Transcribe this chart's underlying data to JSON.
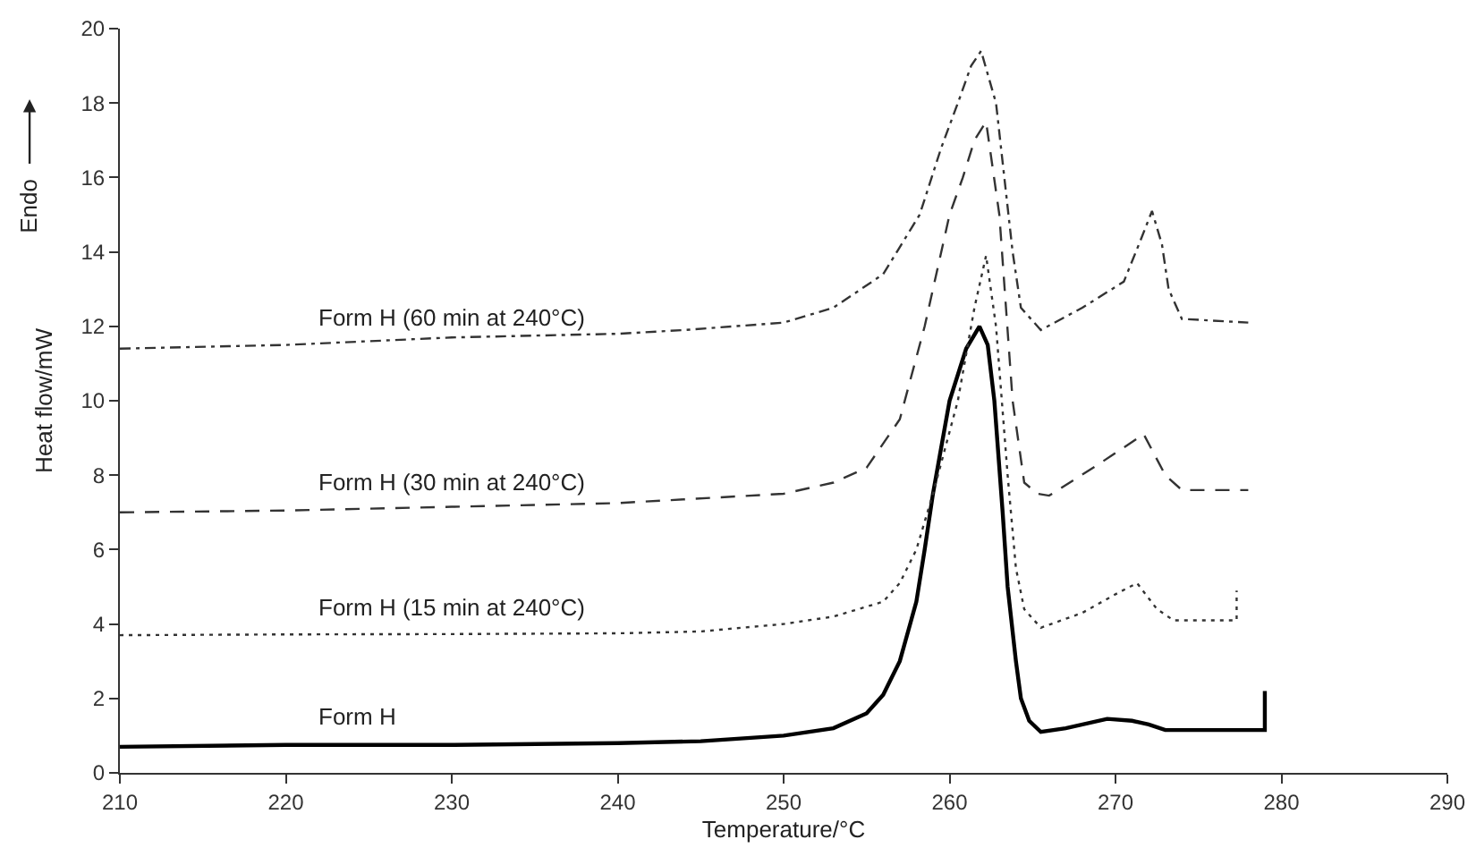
{
  "chart_data": {
    "type": "line",
    "xlabel": "Temperature/°C",
    "ylabel": "Heat flow/mW",
    "annotations": [
      "Endo"
    ],
    "xlim": [
      210,
      290
    ],
    "xticks": [
      210,
      220,
      230,
      240,
      250,
      260,
      270,
      280,
      290
    ],
    "ylim": [
      0,
      20
    ],
    "yticks": [
      0,
      2,
      4,
      6,
      8,
      10,
      12,
      14,
      16,
      18,
      20
    ],
    "grid": false,
    "legend": false,
    "marker": "none",
    "series": [
      {
        "name": "Form H",
        "color": "#000000",
        "line_style": "solid",
        "x": [
          210,
          220,
          230,
          240,
          245,
          250,
          253,
          255,
          256,
          257,
          258,
          258.5,
          259,
          260,
          261,
          261.8,
          262.3,
          262.7,
          263.2,
          263.5,
          264,
          264.3,
          264.8,
          265.5,
          267,
          269.5,
          271,
          272,
          273,
          275,
          279,
          279
        ],
        "values": [
          0.7,
          0.75,
          0.75,
          0.8,
          0.85,
          1.0,
          1.2,
          1.6,
          2.1,
          3.0,
          4.6,
          6.0,
          7.5,
          10.0,
          11.4,
          12.0,
          11.5,
          10.0,
          7.0,
          5.0,
          3.0,
          2.0,
          1.4,
          1.1,
          1.2,
          1.45,
          1.4,
          1.3,
          1.15,
          1.15,
          1.15,
          2.2
        ]
      },
      {
        "name": "Form H (15 min at 240°C)",
        "color": "#333333",
        "line_style": "dotted",
        "x": [
          210,
          220,
          230,
          240,
          245,
          250,
          253,
          256,
          257,
          258,
          259,
          260.5,
          261.5,
          262.2,
          262.8,
          263.5,
          264,
          264.5,
          265.5,
          268,
          270,
          271.3,
          272.5,
          273.5,
          277.3,
          277.3
        ],
        "values": [
          3.7,
          3.72,
          3.73,
          3.75,
          3.8,
          4.0,
          4.2,
          4.6,
          5.1,
          6.0,
          7.5,
          10.0,
          12.5,
          13.9,
          12.0,
          8.0,
          5.5,
          4.4,
          3.9,
          4.3,
          4.8,
          5.1,
          4.4,
          4.1,
          4.1,
          4.9
        ]
      },
      {
        "name": "Form H (30 min at 240°C)",
        "color": "#333333",
        "line_style": "dashed",
        "x": [
          210,
          220,
          230,
          240,
          244,
          250,
          253,
          255,
          257,
          258.5,
          260,
          260.8,
          261.5,
          262.2,
          263,
          263.8,
          264.5,
          265.3,
          266,
          269,
          271.7,
          273,
          274,
          278
        ],
        "values": [
          7.0,
          7.05,
          7.15,
          7.25,
          7.35,
          7.5,
          7.8,
          8.2,
          9.5,
          12.0,
          15.0,
          16.0,
          17.0,
          17.5,
          15.0,
          10.0,
          7.8,
          7.5,
          7.45,
          8.3,
          9.1,
          8.0,
          7.6,
          7.6
        ]
      },
      {
        "name": "Form H (60 min at 240°C)",
        "color": "#333333",
        "line_style": "dashdot",
        "x": [
          210,
          220,
          230,
          240,
          244,
          250,
          253,
          256,
          258.2,
          259.5,
          260.5,
          261.3,
          261.9,
          262.8,
          263.3,
          263.8,
          264.3,
          265.5,
          268,
          270.5,
          271.5,
          272.2,
          272.8,
          273.2,
          274,
          278
        ],
        "values": [
          11.4,
          11.5,
          11.7,
          11.8,
          11.9,
          12.1,
          12.5,
          13.4,
          15.0,
          16.8,
          18.0,
          19.0,
          19.4,
          18.0,
          16.0,
          14.0,
          12.5,
          11.9,
          12.5,
          13.2,
          14.3,
          15.1,
          14.2,
          13.0,
          12.2,
          12.1
        ]
      }
    ]
  }
}
